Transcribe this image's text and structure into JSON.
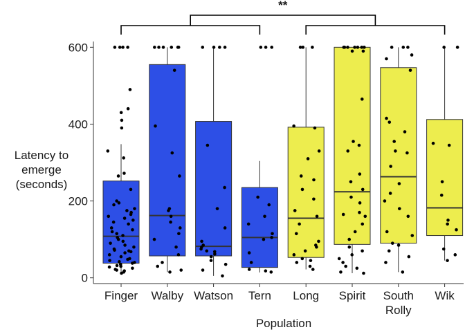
{
  "chart_data": {
    "type": "box",
    "xlabel": "Population",
    "ylabel_lines": [
      "Latency to",
      "emerge",
      "(seconds)"
    ],
    "ylim": [
      -15,
      615
    ],
    "yticks": [
      0,
      200,
      400,
      600
    ],
    "significance": "**",
    "colors": {
      "blue": "#2d4fe6",
      "yellow": "#eded4e"
    },
    "categories": [
      {
        "label_lines": [
          "Finger"
        ],
        "color": "blue",
        "q1": 38,
        "median": 108,
        "q3": 252,
        "whisker_low": 12,
        "whisker_high": 348,
        "points": [
          600,
          600,
          600,
          600,
          490,
          440,
          430,
          410,
          390,
          330,
          312,
          272,
          265,
          230,
          200,
          195,
          190,
          180,
          175,
          170,
          165,
          160,
          155,
          150,
          145,
          140,
          130,
          125,
          120,
          115,
          110,
          105,
          100,
          95,
          90,
          85,
          80,
          75,
          72,
          70,
          68,
          65,
          60,
          55,
          50,
          48,
          45,
          42,
          40,
          38,
          35,
          32,
          30,
          28,
          25,
          22,
          20,
          18,
          15,
          12
        ]
      },
      {
        "label_lines": [
          "Walby"
        ],
        "color": "blue",
        "q1": 57,
        "median": 162,
        "q3": 555,
        "whisker_low": 15,
        "whisker_high": 600,
        "points": [
          600,
          600,
          600,
          600,
          600,
          600,
          540,
          395,
          325,
          265,
          180,
          175,
          160,
          145,
          130,
          115,
          100,
          80,
          60,
          40,
          30,
          20,
          15
        ]
      },
      {
        "label_lines": [
          "Watson"
        ],
        "color": "blue",
        "q1": 57,
        "median": 82,
        "q3": 407,
        "whisker_low": 5,
        "whisker_high": 600,
        "points": [
          600,
          600,
          600,
          600,
          345,
          235,
          180,
          130,
          95,
          85,
          80,
          75,
          70,
          68,
          62,
          55,
          45,
          35,
          20,
          5
        ]
      },
      {
        "label_lines": [
          "Tern"
        ],
        "color": "blue",
        "q1": 27,
        "median": 105,
        "q3": 235,
        "whisker_low": 14,
        "whisker_high": 304,
        "points": [
          600,
          600,
          600,
          210,
          190,
          160,
          140,
          115,
          105,
          100,
          65,
          40,
          22,
          18,
          15
        ]
      },
      {
        "label_lines": [
          "Long"
        ],
        "color": "yellow",
        "q1": 53,
        "median": 155,
        "q3": 392,
        "whisker_low": 22,
        "whisker_high": 600,
        "points": [
          600,
          600,
          600,
          395,
          390,
          330,
          310,
          265,
          255,
          230,
          205,
          175,
          160,
          140,
          115,
          95,
          85,
          80,
          70,
          60,
          50,
          45,
          40,
          30,
          22
        ]
      },
      {
        "label_lines": [
          "Spirit"
        ],
        "color": "yellow",
        "q1": 87,
        "median": 224,
        "q3": 600,
        "whisker_low": 12,
        "whisker_high": 600,
        "points": [
          600,
          600,
          600,
          600,
          600,
          600,
          600,
          590,
          590,
          465,
          355,
          345,
          330,
          270,
          250,
          230,
          210,
          195,
          170,
          165,
          160,
          140,
          120,
          100,
          80,
          70,
          60,
          50,
          40,
          30,
          25,
          15,
          12
        ]
      },
      {
        "label_lines": [
          "South",
          "Rolly"
        ],
        "color": "yellow",
        "q1": 90,
        "median": 263,
        "q3": 547,
        "whisker_low": 15,
        "whisker_high": 600,
        "points": [
          600,
          600,
          600,
          580,
          570,
          540,
          415,
          405,
          380,
          355,
          330,
          325,
          290,
          245,
          220,
          200,
          180,
          160,
          120,
          110,
          90,
          85,
          70,
          55,
          40,
          15
        ]
      },
      {
        "label_lines": [
          "Wik"
        ],
        "color": "yellow",
        "q1": 110,
        "median": 182,
        "q3": 412,
        "whisker_low": 45,
        "whisker_high": 600,
        "points": [
          600,
          600,
          350,
          345,
          250,
          215,
          150,
          140,
          125,
          75,
          60,
          45
        ]
      }
    ]
  }
}
